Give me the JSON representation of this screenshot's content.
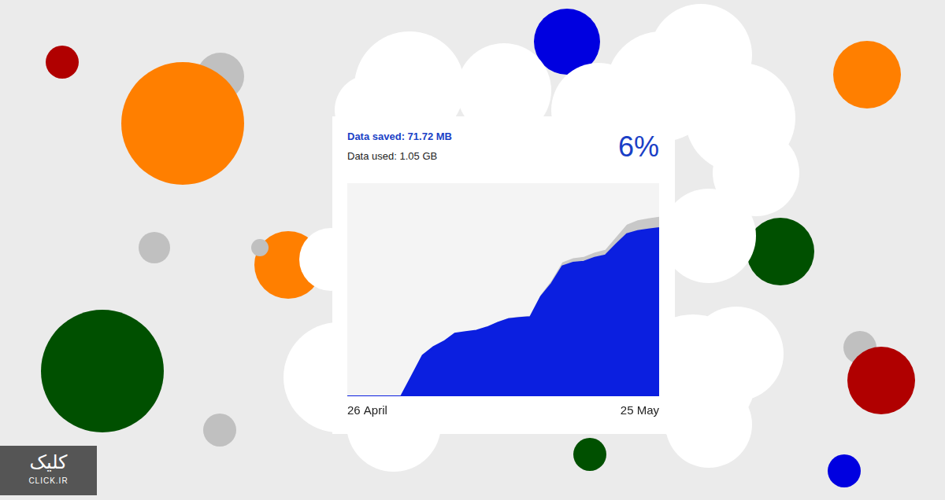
{
  "chart_data": {
    "type": "area",
    "title": "Data saved: 71.72 MB",
    "subtitle": "Data used: 1.05 GB",
    "annotations": [
      "6%",
      "کلیک",
      "CLICK.IR"
    ],
    "categories": [
      "26 April",
      null,
      null,
      null,
      null,
      null,
      null,
      null,
      null,
      null,
      null,
      null,
      null,
      null,
      null,
      null,
      null,
      null,
      null,
      null,
      null,
      null,
      null,
      null,
      null,
      null,
      null,
      null,
      null,
      "25 May"
    ],
    "series": [
      {
        "color": "#0b1fe0",
        "values": [
          0,
          0,
          0,
          0,
          0,
          0,
          130,
          260,
          315,
          350,
          400,
          410,
          419,
          440,
          470,
          493,
          500,
          505,
          636,
          720,
          830,
          853,
          860,
          885,
          900,
          970,
          1035,
          1055,
          1065,
          1074
        ]
      },
      {
        "color": "#c8c8c8",
        "values": [
          0,
          0,
          0,
          0,
          0,
          0,
          0,
          0,
          0,
          0,
          0,
          0,
          0,
          2,
          4,
          6,
          7,
          8,
          12,
          18,
          25,
          28,
          30,
          32,
          35,
          45,
          60,
          68,
          71,
          72
        ]
      }
    ],
    "stacked": true,
    "ylim": [
      0,
      1360
    ],
    "tick_labels": "x",
    "grid": false
  }
}
